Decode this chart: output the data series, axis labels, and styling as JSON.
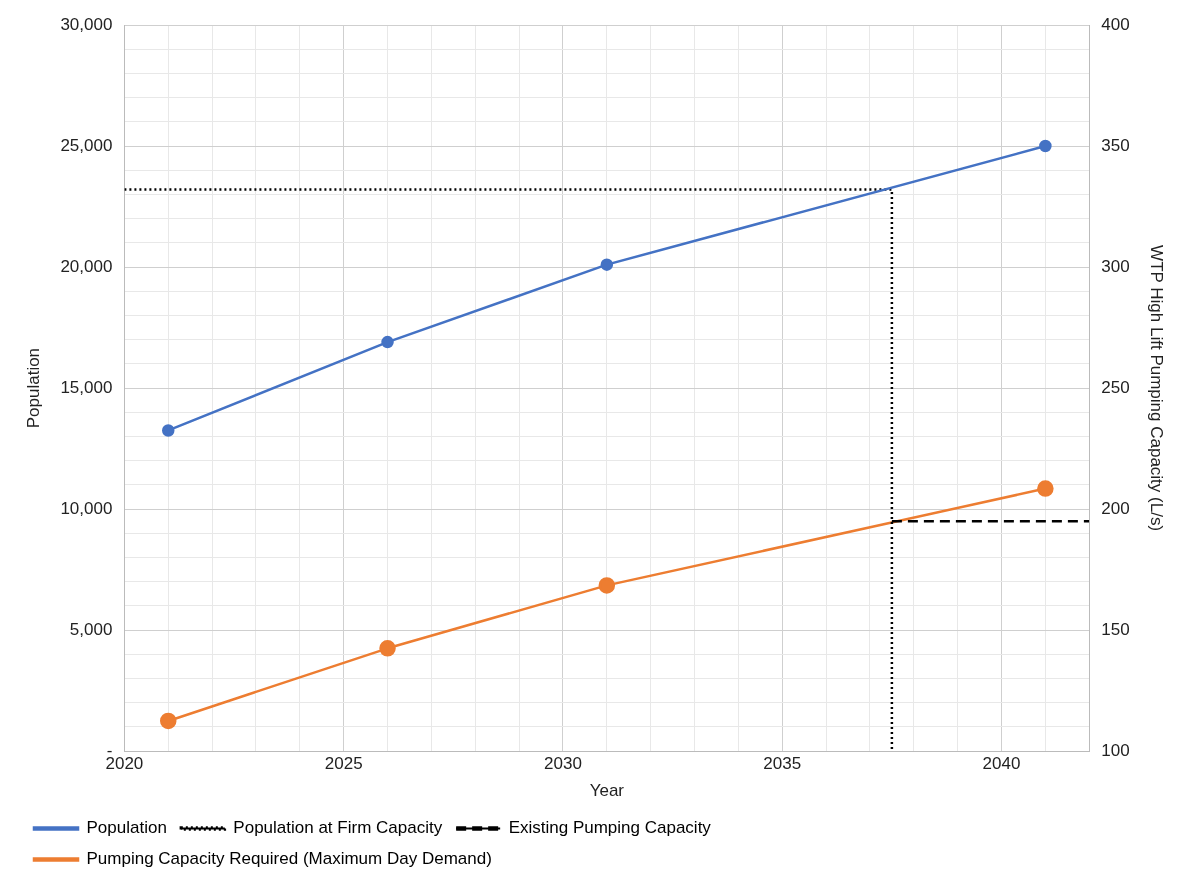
{
  "chart_data": {
    "type": "line",
    "xlabel": "Year",
    "ylabel": "Population",
    "y2label": "WTP High Lift Pumping Capacity (L/s)",
    "xlim": [
      2020,
      2042
    ],
    "xticks": [
      2020,
      {
        "value": 2021,
        "label": null
      },
      {
        "value": 2022,
        "label": null
      },
      {
        "value": 2023,
        "label": null
      },
      {
        "value": 2024,
        "label": null
      },
      2025,
      {
        "value": 2026,
        "label": null
      },
      {
        "value": 2027,
        "label": null
      },
      {
        "value": 2028,
        "label": null
      },
      {
        "value": 2029,
        "label": null
      },
      2030,
      {
        "value": 2031,
        "label": null
      },
      {
        "value": 2032,
        "label": null
      },
      {
        "value": 2033,
        "label": null
      },
      {
        "value": 2034,
        "label": null
      },
      2035,
      {
        "value": 2036,
        "label": null
      },
      {
        "value": 2037,
        "label": null
      },
      {
        "value": 2038,
        "label": null
      },
      {
        "value": 2039,
        "label": null
      },
      2040,
      {
        "value": 2041,
        "label": null
      },
      {
        "value": 2042,
        "label": null
      }
    ],
    "ylim": [
      0,
      30000
    ],
    "yticks": [
      {
        "value": 0,
        "label": "-"
      },
      {
        "value": 1000,
        "label": null
      },
      {
        "value": 2000,
        "label": null
      },
      {
        "value": 3000,
        "label": null
      },
      {
        "value": 4000,
        "label": null
      },
      {
        "value": 5000,
        "label": "5,000"
      },
      {
        "value": 6000,
        "label": null
      },
      {
        "value": 7000,
        "label": null
      },
      {
        "value": 8000,
        "label": null
      },
      {
        "value": 9000,
        "label": null
      },
      {
        "value": 10000,
        "label": "10,000"
      },
      {
        "value": 11000,
        "label": null
      },
      {
        "value": 12000,
        "label": null
      },
      {
        "value": 13000,
        "label": null
      },
      {
        "value": 14000,
        "label": null
      },
      {
        "value": 15000,
        "label": "15,000"
      },
      {
        "value": 16000,
        "label": null
      },
      {
        "value": 17000,
        "label": null
      },
      {
        "value": 18000,
        "label": null
      },
      {
        "value": 19000,
        "label": null
      },
      {
        "value": 20000,
        "label": "20,000"
      },
      {
        "value": 21000,
        "label": null
      },
      {
        "value": 22000,
        "label": null
      },
      {
        "value": 23000,
        "label": null
      },
      {
        "value": 24000,
        "label": null
      },
      {
        "value": 25000,
        "label": "25,000"
      },
      {
        "value": 26000,
        "label": null
      },
      {
        "value": 27000,
        "label": null
      },
      {
        "value": 28000,
        "label": null
      },
      {
        "value": 29000,
        "label": null
      },
      {
        "value": 30000,
        "label": "30,000"
      }
    ],
    "y2lim": [
      100,
      400
    ],
    "y2ticks": [
      100,
      150,
      200,
      250,
      300,
      350,
      400
    ],
    "grid": true,
    "legend": "bottom",
    "series": [
      {
        "name": "Population",
        "color": "#4472c4",
        "x": [
          2021,
          2026,
          2031,
          2041
        ],
        "values": [
          13250,
          16900,
          20100,
          25000
        ],
        "marker": "circle",
        "line_style": "solid"
      },
      {
        "name": "Population at Firm Capacity",
        "color": "#000000",
        "x": [
          2020,
          2037.5,
          2037.5
        ],
        "values": [
          23200,
          23200,
          0
        ],
        "marker": "none",
        "line_style": "dotted"
      },
      {
        "name": "Existing Pumping Capacity",
        "color": "#000000",
        "x": [
          2037.5,
          2042
        ],
        "values": [
          195,
          195
        ],
        "axis": "y2",
        "marker": "none",
        "line_style": "dashed"
      },
      {
        "name": "Pumping Capacity Required (Maximum Day Demand)",
        "color": "#ed7d31",
        "x": [
          2021,
          2026,
          2031,
          2041
        ],
        "values": [
          112.5,
          142.5,
          168.5,
          208.5
        ],
        "axis": "y2",
        "marker": "circle",
        "line_style": "solid"
      }
    ]
  }
}
